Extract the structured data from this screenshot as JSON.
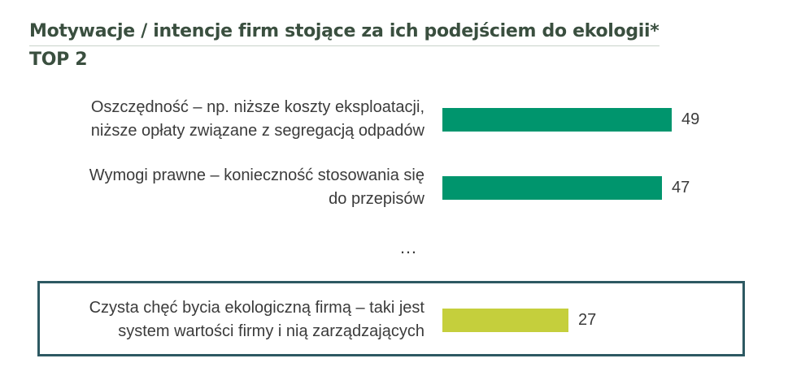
{
  "title": {
    "line1": "Motywacje / intencje firm stojące za ich podejściem do ekologii*",
    "line2": "TOP 2"
  },
  "separator": "…",
  "colors": {
    "primary_bar": "#00956d",
    "highlight_bar": "#c5cf3c",
    "title": "#3a4f3f",
    "box_border": "#2d5962"
  },
  "chart_data": {
    "type": "bar",
    "orientation": "horizontal",
    "categories": [
      "Oszczędność – np. niższe koszty eksploatacji, niższe opłaty związane z segregacją odpadów",
      "Wymogi prawne – konieczność stosowania się do przepisów",
      "Czysta chęć bycia ekologiczną firmą – taki jest system wartości firmy i nią zarządzających"
    ],
    "values": [
      49,
      47,
      27
    ],
    "bars": [
      {
        "label_lines": [
          "Oszczędność – np. niższe koszty eksploatacji,",
          "niższe opłaty związane z segregacją odpadów"
        ],
        "value": 49,
        "value_text": "49",
        "color": "#00956d",
        "highlighted": false
      },
      {
        "label_lines": [
          "Wymogi prawne – konieczność stosowania się",
          "do przepisów"
        ],
        "value": 47,
        "value_text": "47",
        "color": "#00956d",
        "highlighted": false
      },
      {
        "label_lines": [
          "Czysta chęć bycia ekologiczną firmą – taki jest",
          "system wartości firmy i nią zarządzających"
        ],
        "value": 27,
        "value_text": "27",
        "color": "#c5cf3c",
        "highlighted": true
      }
    ],
    "title": "Motywacje / intencje firm stojące za ich podejściem do ekologii* TOP 2",
    "xlabel": "",
    "ylabel": "",
    "grid": false,
    "legend": "none"
  }
}
